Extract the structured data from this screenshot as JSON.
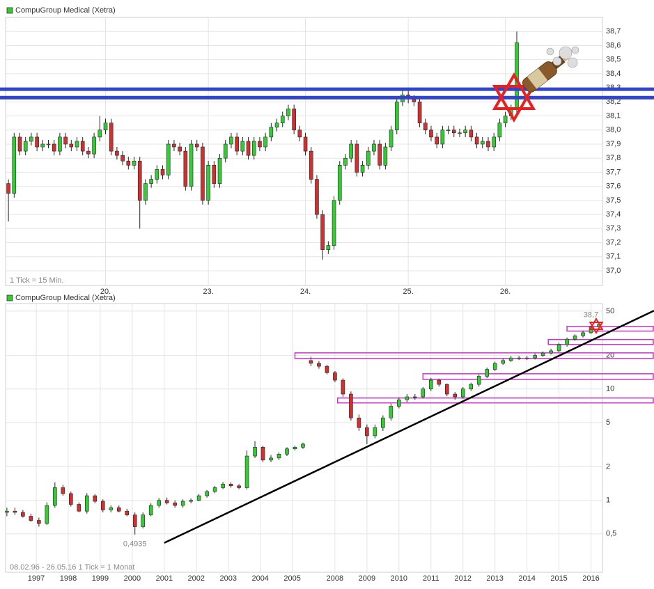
{
  "chart_data": [
    {
      "type": "candlestick",
      "title": "CompuGroup Medical (Xetra)",
      "note": "1 Tick = 15 Min.",
      "up_color": "#33cc33",
      "down_color": "#d03030",
      "grid": true,
      "ylim": [
        36.896,
        38.8
      ],
      "yticks": [
        {
          "value": 37.0,
          "label": "37,0"
        },
        {
          "value": 37.1,
          "label": "37,1"
        },
        {
          "value": 37.2,
          "label": "37,2"
        },
        {
          "value": 37.3,
          "label": "37,3"
        },
        {
          "value": 37.4,
          "label": "37,4"
        },
        {
          "value": 37.5,
          "label": "37,5"
        },
        {
          "value": 37.6,
          "label": "37,6"
        },
        {
          "value": 37.7,
          "label": "37,7"
        },
        {
          "value": 37.8,
          "label": "37,8"
        },
        {
          "value": 37.9,
          "label": "37,9"
        },
        {
          "value": 38.0,
          "label": "38,0"
        },
        {
          "value": 38.1,
          "label": "38,1"
        },
        {
          "value": 38.2,
          "label": "38,2"
        },
        {
          "value": 38.3,
          "label": "38,3"
        },
        {
          "value": 38.4,
          "label": "38,4"
        },
        {
          "value": 38.5,
          "label": "38,5"
        },
        {
          "value": 38.6,
          "label": "38,6"
        },
        {
          "value": 38.7,
          "label": "38,7"
        }
      ],
      "xlim": [
        -0.5,
        104
      ],
      "xticks": [
        {
          "value": 17,
          "label": "20."
        },
        {
          "value": 35,
          "label": "23."
        },
        {
          "value": 52,
          "label": "24."
        },
        {
          "value": 70,
          "label": "25."
        },
        {
          "value": 87,
          "label": "26."
        }
      ],
      "hlines": [
        38.29,
        38.23
      ],
      "hline_color": "#3344cc",
      "open": [
        37.62,
        37.55,
        37.95,
        37.85,
        37.92,
        37.95,
        37.88,
        37.9,
        37.9,
        37.85,
        37.95,
        37.9,
        37.88,
        37.92,
        37.85,
        37.83,
        37.95,
        38.0,
        38.05,
        37.85,
        37.82,
        37.78,
        37.75,
        37.78,
        37.5,
        37.62,
        37.65,
        37.72,
        37.68,
        37.9,
        37.88,
        37.85,
        37.6,
        37.9,
        37.88,
        37.5,
        37.75,
        37.62,
        37.8,
        37.9,
        37.95,
        37.85,
        37.92,
        37.82,
        37.92,
        37.88,
        37.95,
        38.02,
        38.05,
        38.1,
        38.15,
        38.0,
        37.95,
        37.85,
        37.65,
        37.4,
        37.15,
        37.18,
        37.5,
        37.75,
        37.8,
        37.9,
        37.7,
        37.75,
        37.85,
        37.9,
        37.75,
        37.88,
        38.0,
        38.2,
        38.25,
        38.22,
        38.2,
        38.05,
        38.0,
        37.95,
        37.9,
        38.0,
        38.0,
        37.98,
        37.98,
        38.0,
        37.95,
        37.9,
        37.92,
        37.88,
        37.95,
        38.05,
        38.1,
        38.15
      ],
      "high": [
        37.65,
        37.98,
        37.98,
        37.95,
        37.98,
        37.98,
        37.93,
        37.93,
        37.93,
        37.98,
        37.98,
        37.93,
        37.95,
        37.95,
        37.88,
        37.98,
        38.1,
        38.08,
        38.08,
        37.88,
        37.85,
        37.81,
        37.81,
        37.81,
        37.65,
        37.68,
        37.75,
        37.75,
        37.93,
        37.93,
        37.91,
        37.88,
        37.93,
        37.93,
        37.91,
        37.78,
        37.78,
        37.83,
        37.93,
        37.98,
        37.98,
        37.95,
        37.95,
        37.95,
        37.95,
        37.98,
        38.05,
        38.08,
        38.13,
        38.18,
        38.18,
        38.03,
        37.98,
        37.88,
        37.68,
        37.43,
        37.21,
        37.53,
        37.78,
        37.83,
        37.93,
        37.93,
        37.78,
        37.88,
        37.93,
        37.93,
        37.91,
        38.03,
        38.23,
        38.28,
        38.28,
        38.25,
        38.23,
        38.08,
        38.03,
        37.98,
        38.03,
        38.03,
        38.03,
        38.01,
        38.03,
        38.03,
        37.98,
        37.95,
        37.95,
        37.98,
        38.08,
        38.13,
        38.18,
        38.7
      ],
      "low": [
        37.35,
        37.52,
        37.82,
        37.82,
        37.89,
        37.85,
        37.85,
        37.87,
        37.82,
        37.82,
        37.87,
        37.85,
        37.85,
        37.82,
        37.8,
        37.8,
        37.92,
        37.97,
        37.82,
        37.79,
        37.75,
        37.72,
        37.72,
        37.3,
        37.47,
        37.59,
        37.62,
        37.65,
        37.65,
        37.85,
        37.82,
        37.57,
        37.57,
        37.85,
        37.47,
        37.47,
        37.59,
        37.59,
        37.77,
        37.87,
        37.82,
        37.82,
        37.79,
        37.79,
        37.85,
        37.85,
        37.92,
        37.99,
        38.02,
        38.07,
        37.97,
        37.92,
        37.82,
        37.62,
        37.37,
        37.08,
        37.12,
        37.15,
        37.47,
        37.72,
        37.77,
        37.67,
        37.67,
        37.72,
        37.82,
        37.72,
        37.72,
        37.85,
        37.97,
        38.17,
        38.19,
        38.17,
        38.02,
        37.97,
        37.92,
        37.87,
        37.87,
        37.97,
        37.95,
        37.95,
        37.95,
        37.92,
        37.87,
        37.87,
        37.85,
        37.85,
        37.92,
        38.02,
        38.07,
        38.12
      ],
      "close": [
        37.55,
        37.95,
        37.85,
        37.92,
        37.95,
        37.88,
        37.9,
        37.9,
        37.85,
        37.95,
        37.9,
        37.88,
        37.92,
        37.85,
        37.83,
        37.95,
        38.0,
        38.05,
        37.85,
        37.82,
        37.78,
        37.75,
        37.78,
        37.5,
        37.62,
        37.65,
        37.72,
        37.68,
        37.9,
        37.88,
        37.85,
        37.6,
        37.9,
        37.88,
        37.5,
        37.75,
        37.62,
        37.8,
        37.9,
        37.95,
        37.85,
        37.92,
        37.82,
        37.92,
        37.88,
        37.95,
        38.02,
        38.05,
        38.1,
        38.15,
        38.0,
        37.95,
        37.85,
        37.65,
        37.4,
        37.15,
        37.18,
        37.5,
        37.75,
        37.8,
        37.9,
        37.7,
        37.75,
        37.85,
        37.9,
        37.75,
        37.88,
        38.0,
        38.2,
        38.25,
        38.22,
        38.2,
        38.05,
        38.0,
        37.95,
        37.9,
        38.0,
        38.0,
        37.98,
        37.98,
        38.0,
        37.95,
        37.9,
        37.92,
        37.88,
        37.95,
        38.05,
        38.1,
        38.15,
        38.62
      ]
    },
    {
      "type": "candlestick",
      "title": "CompuGroup Medical (Xetra)",
      "note": "08.02.96 - 26.05.16   1 Tick = 1 Monat",
      "up_color": "#33cc33",
      "down_color": "#d03030",
      "grid": true,
      "log_y": true,
      "ylim": [
        0.226,
        58.5
      ],
      "yticks": [
        50,
        20,
        10,
        5,
        2,
        1,
        {
          "value": 0.5,
          "label": "0,5"
        }
      ],
      "xlim": [
        -0.5,
        223.3
      ],
      "xticks": [
        {
          "value": 11,
          "label": "1997"
        },
        {
          "value": 23,
          "label": "1998"
        },
        {
          "value": 35,
          "label": "1999"
        },
        {
          "value": 47,
          "label": "2000"
        },
        {
          "value": 59,
          "label": "2001"
        },
        {
          "value": 71,
          "label": "2002"
        },
        {
          "value": 83,
          "label": "2003"
        },
        {
          "value": 95,
          "label": "2004"
        },
        {
          "value": 107,
          "label": "2005"
        },
        {
          "value": 123,
          "label": "2008"
        },
        {
          "value": 135,
          "label": "2009"
        },
        {
          "value": 147,
          "label": "2010"
        },
        {
          "value": 159,
          "label": "2011"
        },
        {
          "value": 171,
          "label": "2012"
        },
        {
          "value": 183,
          "label": "2013"
        },
        {
          "value": 195,
          "label": "2014"
        },
        {
          "value": 207,
          "label": "2015"
        },
        {
          "value": 219,
          "label": "2016"
        }
      ],
      "x": [
        0,
        3,
        6,
        9,
        12,
        15,
        18,
        21,
        24,
        27,
        30,
        33,
        36,
        39,
        42,
        45,
        48,
        51,
        54,
        57,
        60,
        63,
        66,
        69,
        72,
        75,
        78,
        81,
        84,
        87,
        90,
        93,
        96,
        99,
        102,
        105,
        108,
        111,
        114,
        117,
        120,
        123,
        126,
        129,
        132,
        135,
        138,
        141,
        144,
        147,
        150,
        153,
        156,
        159,
        162,
        165,
        168,
        171,
        174,
        177,
        180,
        183,
        186,
        189,
        192,
        195,
        198,
        201,
        204,
        207,
        210,
        213,
        216,
        219,
        222
      ],
      "open": [
        0.78,
        0.8,
        0.78,
        0.72,
        0.66,
        0.62,
        0.9,
        1.3,
        1.15,
        0.92,
        0.8,
        1.1,
        0.98,
        0.82,
        0.86,
        0.8,
        0.74,
        0.58,
        0.74,
        0.9,
        1.0,
        0.95,
        0.9,
        0.98,
        1.0,
        1.1,
        1.2,
        1.3,
        1.4,
        1.35,
        1.3,
        2.5,
        3.0,
        2.3,
        2.4,
        2.6,
        2.9,
        3.0,
        18.0,
        17.0,
        16.0,
        14.0,
        12.0,
        9.0,
        5.5,
        4.5,
        3.8,
        4.5,
        5.5,
        7.0,
        8.0,
        8.5,
        8.5,
        10.0,
        12.0,
        11.0,
        9.0,
        8.5,
        10.0,
        11.0,
        13.0,
        15.0,
        17.0,
        18.0,
        19.0,
        19.0,
        19.0,
        20.0,
        21.0,
        22.0,
        25.0,
        28.0,
        30.0,
        32.0,
        36.0
      ],
      "high": [
        0.86,
        0.86,
        0.82,
        0.76,
        0.7,
        0.96,
        1.45,
        1.38,
        1.2,
        0.96,
        1.16,
        1.14,
        1.02,
        0.9,
        0.9,
        0.84,
        0.78,
        0.78,
        0.94,
        1.05,
        1.06,
        1.0,
        1.02,
        1.04,
        1.14,
        1.24,
        1.35,
        1.46,
        1.45,
        1.4,
        2.8,
        3.4,
        3.1,
        2.55,
        2.7,
        3.0,
        3.1,
        3.3,
        19.5,
        17.8,
        16.5,
        14.5,
        12.5,
        9.5,
        5.9,
        4.8,
        4.8,
        5.8,
        7.4,
        8.4,
        9.0,
        9.0,
        10.4,
        12.6,
        12.4,
        11.2,
        9.4,
        10.4,
        11.4,
        13.5,
        15.6,
        17.6,
        18.8,
        19.8,
        19.8,
        19.8,
        20.8,
        21.8,
        23,
        26,
        29,
        31,
        33.5,
        37,
        39.5
      ],
      "low": [
        0.72,
        0.74,
        0.7,
        0.64,
        0.58,
        0.6,
        0.86,
        1.1,
        0.88,
        0.78,
        0.76,
        0.94,
        0.78,
        0.78,
        0.78,
        0.72,
        0.4935,
        0.56,
        0.72,
        0.86,
        0.92,
        0.86,
        0.86,
        0.94,
        0.98,
        1.06,
        1.16,
        1.26,
        1.3,
        1.26,
        1.25,
        2.4,
        2.2,
        2.2,
        2.3,
        2.5,
        2.8,
        2.9,
        16.0,
        15.2,
        13.5,
        11.5,
        8.5,
        5.2,
        4.2,
        3.2,
        3.6,
        4.2,
        5.2,
        6.7,
        7.6,
        8.0,
        8.2,
        9.6,
        10.5,
        8.6,
        8.0,
        8.2,
        9.6,
        10.5,
        12.5,
        14.5,
        16.5,
        17.5,
        18.2,
        18.2,
        18.4,
        19.4,
        20.4,
        21.4,
        24,
        27,
        29,
        31,
        35
      ],
      "close": [
        0.8,
        0.78,
        0.72,
        0.66,
        0.62,
        0.9,
        1.3,
        1.15,
        0.92,
        0.8,
        1.1,
        0.98,
        0.82,
        0.86,
        0.8,
        0.74,
        0.58,
        0.74,
        0.9,
        1.0,
        0.95,
        0.9,
        0.98,
        1.0,
        1.1,
        1.2,
        1.3,
        1.4,
        1.35,
        1.3,
        2.5,
        3.0,
        2.3,
        2.4,
        2.6,
        2.9,
        3.0,
        3.2,
        17.0,
        16.0,
        14.0,
        12.0,
        9.0,
        5.5,
        4.5,
        3.8,
        4.5,
        5.5,
        7.0,
        8.0,
        8.5,
        8.5,
        10.0,
        12.0,
        11.0,
        9.0,
        8.5,
        10.0,
        11.0,
        13.0,
        15.0,
        17.0,
        18.0,
        19.0,
        19.0,
        19.0,
        20.0,
        21.0,
        22.0,
        25.0,
        28.0,
        30.0,
        32.0,
        36.0,
        38.0
      ],
      "annotations": [
        {
          "text": "0,4935",
          "x": 48,
          "y": 0.4935
        },
        {
          "text": "38,7",
          "x": 219,
          "y": 38.7
        }
      ],
      "trendline": {
        "x": [
          59,
          223
        ],
        "y": [
          0.415,
          30.2
        ],
        "color": "#000000"
      },
      "band_color": "#cc33cc",
      "bands": [
        {
          "x": 108,
          "low": 18.8,
          "high": 21.1
        },
        {
          "x": 124,
          "low": 7.5,
          "high": 8.3
        },
        {
          "x": 156,
          "low": 12.2,
          "high": 13.7
        },
        {
          "x": 203,
          "low": 25.1,
          "high": 27.8
        },
        {
          "x": 210,
          "low": 33.1,
          "high": 36.5
        }
      ]
    }
  ]
}
